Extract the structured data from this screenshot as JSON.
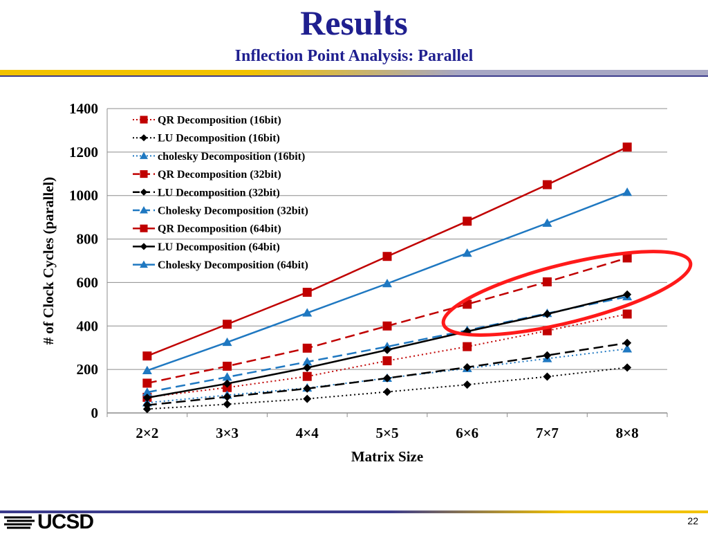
{
  "slide": {
    "title": "Results",
    "subtitle": "Inflection Point Analysis: Parallel",
    "page_number": "22",
    "logo_text": "UCSD"
  },
  "colors": {
    "title": "#1f1f8f",
    "qr": "#c00000",
    "lu": "#000000",
    "cholesky": "#1f78c1",
    "highlight_ellipse": "#ff1a1a",
    "band_gold": "#f2c200",
    "band_navy": "#3b3b8c"
  },
  "chart_data": {
    "type": "line",
    "title": "",
    "xlabel": "Matrix Size",
    "ylabel": "# of Clock Cycles (parallel)",
    "categories": [
      "2×2",
      "3×3",
      "4×4",
      "5×5",
      "6×6",
      "7×7",
      "8×8"
    ],
    "ylim": [
      0,
      1400
    ],
    "yticks": [
      0,
      200,
      400,
      600,
      800,
      1000,
      1200,
      1400
    ],
    "grid": "horizontal",
    "legend_position": "top-left",
    "annotation": "red ellipse highlighting the crossing of the QR (32bit), Cholesky (64bit), LU (64bit) and Cholesky (32bit) curves between 6×6 and 8×8",
    "series": [
      {
        "name": "QR Decomposition (16bit)",
        "family": "qr",
        "line": "dotted",
        "marker": "square",
        "values": [
          72,
          117,
          168,
          240,
          305,
          378,
          455
        ]
      },
      {
        "name": "LU Decomposition (16bit)",
        "family": "lu",
        "line": "dotted",
        "marker": "diamond",
        "values": [
          18,
          40,
          65,
          97,
          130,
          167,
          209
        ]
      },
      {
        "name": "cholesky Decomposition (16bit)",
        "family": "cholesky",
        "line": "dotted",
        "marker": "triangle",
        "values": [
          47,
          82,
          115,
          160,
          205,
          250,
          295
        ]
      },
      {
        "name": "QR Decomposition (32bit)",
        "family": "qr",
        "line": "dashed",
        "marker": "square",
        "values": [
          137,
          215,
          298,
          400,
          500,
          603,
          713
        ]
      },
      {
        "name": "LU Decomposition (32bit)",
        "family": "lu",
        "line": "dashed",
        "marker": "diamond",
        "values": [
          36,
          74,
          112,
          160,
          210,
          265,
          322
        ]
      },
      {
        "name": "Cholesky Decomposition (32bit)",
        "family": "cholesky",
        "line": "dashed",
        "marker": "triangle",
        "values": [
          95,
          165,
          235,
          305,
          380,
          458,
          535
        ]
      },
      {
        "name": "QR Decomposition (64bit)",
        "family": "qr",
        "line": "solid",
        "marker": "square",
        "values": [
          262,
          408,
          555,
          720,
          882,
          1050,
          1223
        ]
      },
      {
        "name": "LU Decomposition (64bit)",
        "family": "lu",
        "line": "solid",
        "marker": "diamond",
        "values": [
          70,
          135,
          208,
          290,
          375,
          455,
          545
        ]
      },
      {
        "name": "Cholesky Decomposition (64bit)",
        "family": "cholesky",
        "line": "solid",
        "marker": "triangle",
        "values": [
          195,
          325,
          460,
          595,
          735,
          873,
          1015
        ]
      }
    ]
  }
}
